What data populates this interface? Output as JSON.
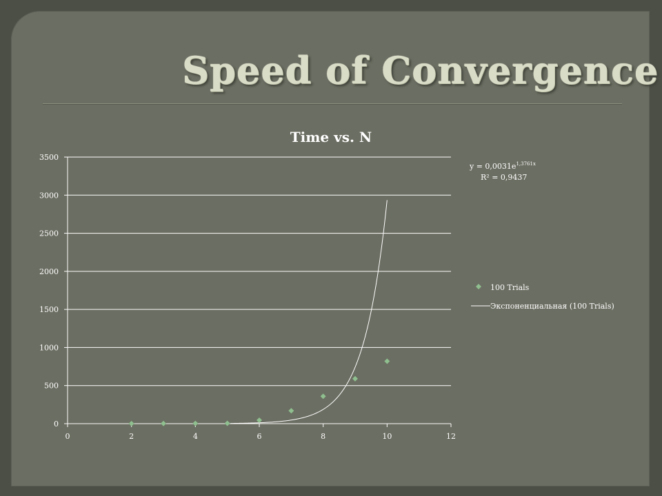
{
  "slide": {
    "title": "Speed of Convergence"
  },
  "chart_data": {
    "type": "scatter",
    "title": "Time vs. N",
    "xlabel": "",
    "ylabel": "",
    "xlim": [
      0,
      12
    ],
    "ylim": [
      0,
      3500
    ],
    "x_ticks": [
      0,
      2,
      4,
      6,
      8,
      10,
      12
    ],
    "y_ticks": [
      0,
      500,
      1000,
      1500,
      2000,
      2500,
      3000,
      3500
    ],
    "grid": "horizontal",
    "legend_position": "right",
    "series": [
      {
        "name": "100 Trials",
        "marker": "diamond",
        "color": "#8fbf8f",
        "x": [
          2,
          3,
          4,
          5,
          6,
          7,
          8,
          9,
          10
        ],
        "y": [
          1,
          2,
          3,
          5,
          45,
          170,
          360,
          590,
          820
        ]
      }
    ],
    "trendline": {
      "name": "Экспоненциальная (100 Trials)",
      "type": "exponential",
      "color": "#ffffff",
      "coefficient": 0.0031,
      "exponent": 1.3761,
      "x_range": [
        5.1,
        10
      ],
      "equation_prefix": "y = 0,0031e",
      "equation_exponent": "1,3761x",
      "r_squared_label": "R² = 0,9437"
    }
  }
}
